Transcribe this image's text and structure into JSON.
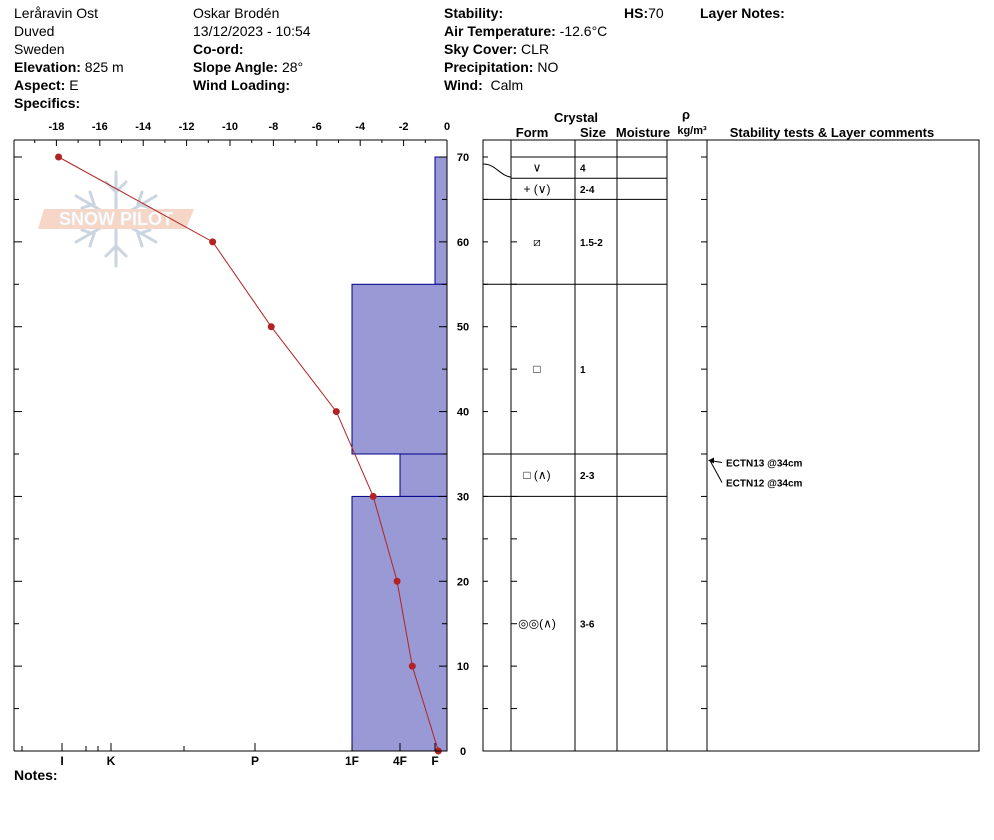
{
  "header": {
    "location": "Leråravin Ost",
    "area": "Duved",
    "country": "Sweden",
    "elevation_label": "Elevation:",
    "elevation_value": "825 m",
    "aspect_label": "Aspect:",
    "aspect_value": "E",
    "specifics_label": "Specifics:",
    "observer": "Oskar Brodén",
    "datetime": "13/12/2023 - 10:54",
    "coord_label": "Co-ord:",
    "slope_label": "Slope Angle:",
    "slope_value": "28°",
    "wind_loading_label": "Wind Loading:",
    "stability_label": "Stability:",
    "air_temp_label": "Air Temperature:",
    "air_temp_value": "-12.6°C",
    "sky_label": "Sky Cover:",
    "sky_value": "CLR",
    "precip_label": "Precipitation:",
    "precip_value": "NO",
    "wind_label": "Wind:",
    "wind_value": "Calm",
    "hs_label": "HS:",
    "hs_value": "70",
    "layer_notes_label": "Layer Notes:"
  },
  "notes_label": "Notes:",
  "watermark_text": "SNOW PILOT",
  "table_headers": {
    "crystal": "Crystal",
    "form": "Form",
    "size": "Size",
    "moisture": "Moisture",
    "rho": "ρ",
    "density_unit": "kg/m³",
    "stability": "Stability tests & Layer comments"
  },
  "colors": {
    "hardness_fill": "#9999d6",
    "hardness_stroke": "#00008b",
    "temp_line": "#b22222"
  },
  "chart_data": {
    "type": "line",
    "temperature_axis": {
      "range": [
        -19,
        0
      ],
      "ticks": [
        -18,
        -16,
        -14,
        -12,
        -10,
        -8,
        -6,
        -4,
        -2,
        0
      ],
      "position": "top"
    },
    "height_axis": {
      "range": [
        0,
        72
      ],
      "ticks": [
        0,
        10,
        20,
        30,
        40,
        50,
        60,
        70
      ],
      "position": "right"
    },
    "hardness_axis": {
      "labels": [
        "I",
        "K",
        "P",
        "1F",
        "4F",
        "F"
      ],
      "position": "bottom"
    },
    "temperature_profile": [
      {
        "height": 70,
        "temp": -17.9
      },
      {
        "height": 60,
        "temp": -10.8
      },
      {
        "height": 50,
        "temp": -8.1
      },
      {
        "height": 40,
        "temp": -5.1
      },
      {
        "height": 30,
        "temp": -3.4
      },
      {
        "height": 20,
        "temp": -2.3
      },
      {
        "height": 10,
        "temp": -1.6
      },
      {
        "height": 0,
        "temp": -0.4
      }
    ],
    "hardness_layers": [
      {
        "top": 70,
        "bottom": 55,
        "hardness": "F"
      },
      {
        "top": 55,
        "bottom": 35,
        "hardness": "1F"
      },
      {
        "top": 35,
        "bottom": 30,
        "hardness": "4F"
      },
      {
        "top": 30,
        "bottom": 0,
        "hardness": "1F"
      }
    ],
    "crystal_layers": [
      {
        "top": 70,
        "bottom": 67.5,
        "form": "∨",
        "size": "4"
      },
      {
        "top": 67.5,
        "bottom": 65,
        "form": "+ (∨)",
        "size": "2-4"
      },
      {
        "top": 65,
        "bottom": 55,
        "form": "⧄",
        "size": "1.5-2"
      },
      {
        "top": 55,
        "bottom": 35,
        "form": "□",
        "size": "1"
      },
      {
        "top": 35,
        "bottom": 30,
        "form": "□ (∧)",
        "size": "2-3"
      },
      {
        "top": 30,
        "bottom": 0,
        "form": "◎◎(∧)",
        "size": "3-6"
      }
    ],
    "stability_tests": [
      {
        "text": "ECTN13 @34cm",
        "height": 34
      },
      {
        "text": "ECTN12 @34cm",
        "height": 34
      }
    ]
  }
}
